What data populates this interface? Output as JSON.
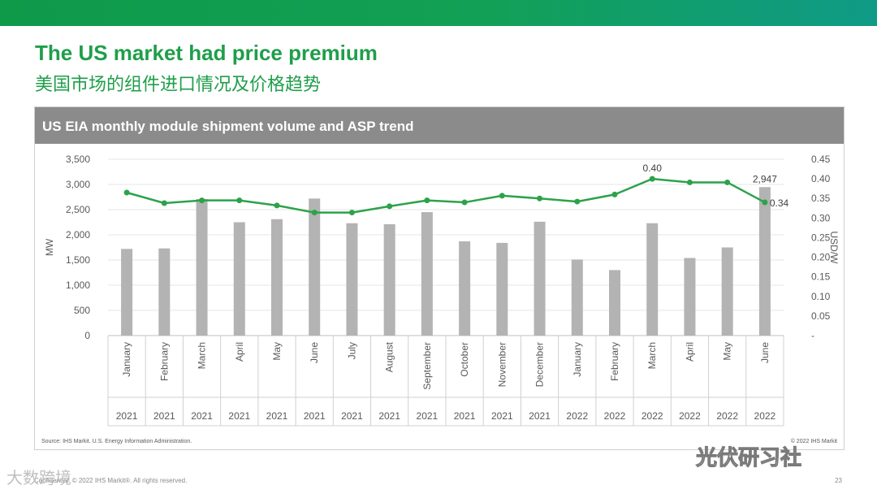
{
  "slide": {
    "title_en": "The US market had price premium",
    "title_cn": "美国市场的组件进口情况及价格趋势",
    "panel_title": "US EIA  monthly module shipment volume and ASP trend",
    "footer": "Confidential. © 2022 IHS Markit®. All rights reserved.",
    "page_number": "23",
    "watermark_left": "大数跨境",
    "watermark_right": "光伏研习社"
  },
  "colors": {
    "accent": "#1f9e4a",
    "bar": "#b3b3b3",
    "line": "#2ca24a",
    "header": "#8b8b8b"
  },
  "chart_data": {
    "type": "bar+line",
    "title": "US EIA  monthly module shipment volume and ASP trend",
    "source": "Source: IHS Markit. U.S. Energy Information Administration.",
    "copyright": "© 2022 IHS Markit",
    "categories": [
      "January",
      "February",
      "March",
      "April",
      "May",
      "June",
      "July",
      "August",
      "September",
      "October",
      "November",
      "December",
      "January",
      "February",
      "March",
      "April",
      "May",
      "June"
    ],
    "years": [
      "2021",
      "2021",
      "2021",
      "2021",
      "2021",
      "2021",
      "2021",
      "2021",
      "2021",
      "2021",
      "2021",
      "2021",
      "2022",
      "2022",
      "2022",
      "2022",
      "2022",
      "2022"
    ],
    "series": [
      {
        "name": "Shipment volume",
        "axis": "left",
        "unit": "MW",
        "values": [
          1720,
          1730,
          2710,
          2250,
          2310,
          2720,
          2230,
          2210,
          2450,
          1870,
          1840,
          2260,
          1510,
          1300,
          2230,
          1540,
          1750,
          2947
        ]
      },
      {
        "name": "ASP",
        "axis": "right",
        "unit": "USD/W",
        "values": [
          0.365,
          0.338,
          0.345,
          0.345,
          0.332,
          0.314,
          0.314,
          0.33,
          0.345,
          0.34,
          0.357,
          0.35,
          0.342,
          0.36,
          0.4,
          0.391,
          0.391,
          0.34
        ]
      }
    ],
    "data_labels": [
      {
        "series": 0,
        "index": 17,
        "text": "2,947"
      },
      {
        "series": 1,
        "index": 14,
        "text": "0.40"
      },
      {
        "series": 1,
        "index": 17,
        "text": "0.34"
      }
    ],
    "ylabel_left": "MW",
    "ylabel_right": "USD/W",
    "ylim_left": [
      0,
      3500
    ],
    "ylim_right": [
      0,
      0.45
    ],
    "yticks_left": [
      "0",
      "500",
      "1,000",
      "1,500",
      "2,000",
      "2,500",
      "3,000",
      "3,500"
    ],
    "yticks_right": [
      "-",
      "0.05",
      "0.10",
      "0.15",
      "0.20",
      "0.25",
      "0.30",
      "0.35",
      "0.40",
      "0.45"
    ]
  }
}
